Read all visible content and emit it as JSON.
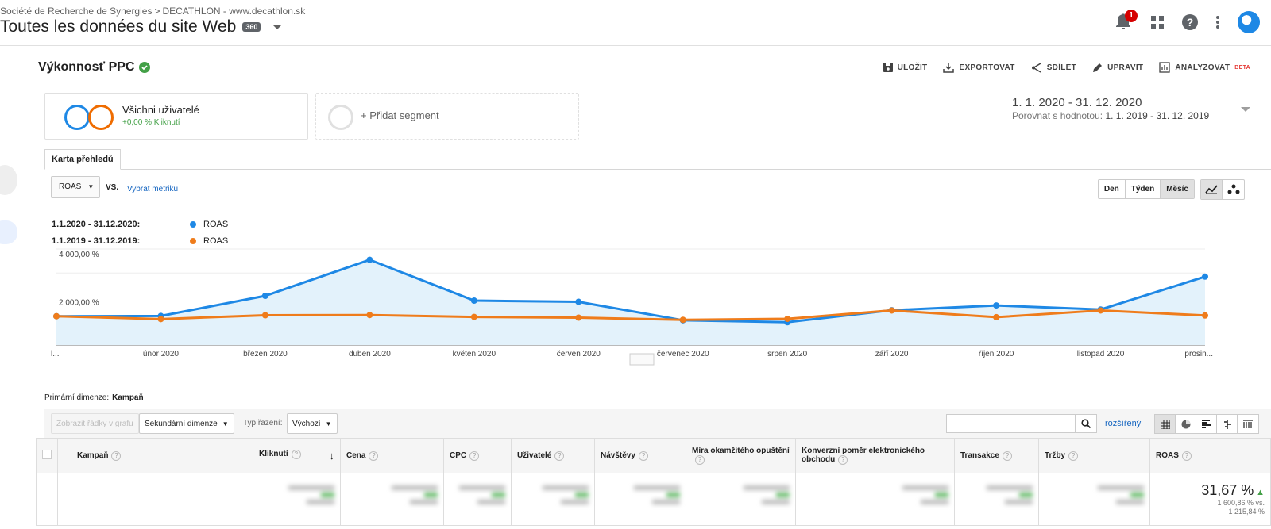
{
  "breadcrumb": {
    "org": "Société de Recherche de Synergies",
    "account": "DECATHLON - www.decathlon.sk"
  },
  "property": {
    "title": "Toutes les données du site Web",
    "badge": "360"
  },
  "header": {
    "notification_count": "1"
  },
  "report": {
    "title": "Výkonnosť PPC",
    "actions": {
      "save": "ULOŽIT",
      "export": "EXPORTOVAT",
      "share": "SDÍLET",
      "edit": "UPRAVIT",
      "analyze": "ANALYZOVAT",
      "beta": "BETA"
    }
  },
  "segments": {
    "active": {
      "name": "Všichni uživatelé",
      "sub": "+0,00 % Kliknutí"
    },
    "add": "+ Přidat segment"
  },
  "date_range": {
    "main": "1. 1. 2020 - 31. 12. 2020",
    "compare_label": "Porovnat s hodnotou:",
    "compare_value": "1. 1. 2019 - 31. 12. 2019"
  },
  "tab": {
    "label": "Karta přehledů"
  },
  "chart_controls": {
    "metric": "ROAS",
    "vs": "VS.",
    "pick_metric": "Vybrat metriku",
    "periods": [
      "Den",
      "Týden",
      "Měsíc"
    ]
  },
  "legend": [
    {
      "period": "1.1.2020 - 31.12.2020:",
      "metric": "ROAS",
      "color": "#1e88e5"
    },
    {
      "period": "1.1.2019 - 31.12.2019:",
      "metric": "ROAS",
      "color": "#ef7c1b"
    }
  ],
  "chart_data": {
    "type": "line",
    "categories": [
      "l...",
      "únor 2020",
      "březen 2020",
      "duben 2020",
      "květen 2020",
      "červen 2020",
      "červenec 2020",
      "srpen 2020",
      "září 2020",
      "říjen 2020",
      "listopad 2020",
      "prosin..."
    ],
    "series": [
      {
        "name": "ROAS",
        "values": [
          1200,
          1210,
          2050,
          3550,
          1850,
          1800,
          1030,
          950,
          1450,
          1650,
          1480,
          2850
        ],
        "color": "#1e88e5"
      },
      {
        "name": "ROAS",
        "values": [
          1200,
          1080,
          1240,
          1250,
          1170,
          1140,
          1050,
          1090,
          1440,
          1160,
          1440,
          1230
        ],
        "color": "#ef7c1b"
      }
    ],
    "y_ticks": [
      "2 000,00 %",
      "4 000,00 %"
    ],
    "ylim": [
      0,
      4000
    ]
  },
  "primary_dimension": {
    "label": "Primární dimenze:",
    "value": "Kampaň"
  },
  "table_bar": {
    "plot_rows": "Zobrazit řádky v grafu",
    "secondary": "Sekundární dimenze",
    "sort_label": "Typ řazení:",
    "sort_value": "Výchozí",
    "advanced": "rozšířený"
  },
  "table": {
    "columns": [
      "Kampaň",
      "Kliknutí",
      "Cena",
      "CPC",
      "Uživatelé",
      "Návštěvy",
      "Míra okamžitého opuštění",
      "Konverzní poměr elektronického obchodu",
      "Transakce",
      "Tržby",
      "ROAS"
    ],
    "total_roas": {
      "value": "31,67 %",
      "compare1": "1 600,86 % vs.",
      "compare2": "1 215,84 %"
    }
  }
}
